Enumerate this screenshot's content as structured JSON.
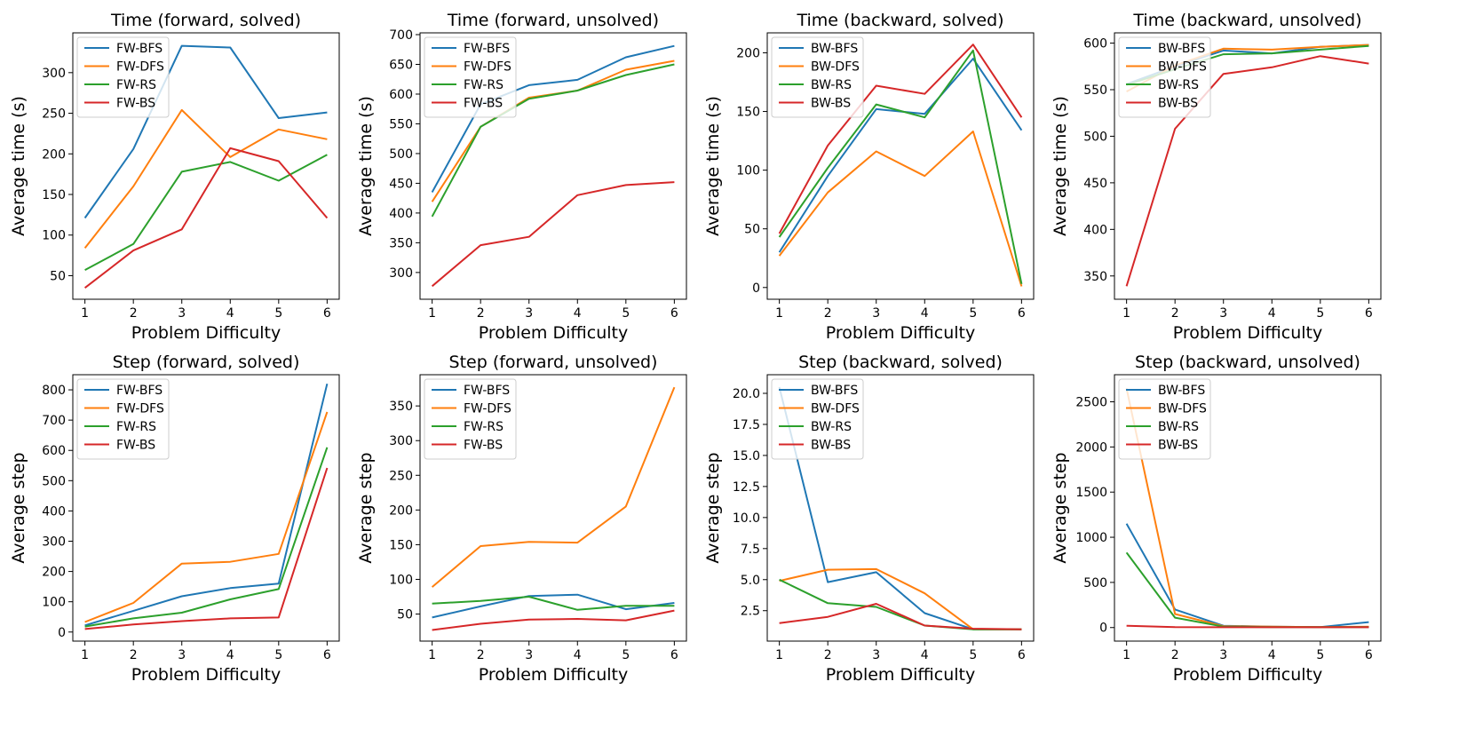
{
  "colors": {
    "FW-BFS": "#1f77b4",
    "FW-DFS": "#ff7f0e",
    "FW-RS": "#2ca02c",
    "FW-BS": "#d62728",
    "BW-BFS": "#1f77b4",
    "BW-DFS": "#ff7f0e",
    "BW-RS": "#2ca02c",
    "BW-BS": "#d62728"
  },
  "chart_data": [
    {
      "type": "line",
      "title": "Time (forward, solved)",
      "xlabel": "Problem Difficulty",
      "ylabel": "Average time (s)",
      "x": [
        1,
        2,
        3,
        4,
        5,
        6
      ],
      "xlim": [
        0.75,
        6.25
      ],
      "ylim": [
        21,
        349
      ],
      "yticks": [
        50,
        100,
        150,
        200,
        250,
        300
      ],
      "legend": "top-left",
      "series": [
        {
          "name": "FW-BFS",
          "values": [
            121,
            206,
            333,
            331,
            244,
            251
          ]
        },
        {
          "name": "FW-DFS",
          "values": [
            84,
            160,
            254,
            196,
            230,
            218
          ]
        },
        {
          "name": "FW-RS",
          "values": [
            57,
            89,
            178,
            190,
            167,
            199
          ]
        },
        {
          "name": "FW-BS",
          "values": [
            35,
            81,
            107,
            207,
            191,
            121
          ]
        }
      ]
    },
    {
      "type": "line",
      "title": "Time (forward, unsolved)",
      "xlabel": "Problem Difficulty",
      "ylabel": "Average time (s)",
      "x": [
        1,
        2,
        3,
        4,
        5,
        6
      ],
      "xlim": [
        0.75,
        6.25
      ],
      "ylim": [
        255,
        703
      ],
      "yticks": [
        300,
        350,
        400,
        450,
        500,
        550,
        600,
        650,
        700
      ],
      "legend": "top-left",
      "series": [
        {
          "name": "FW-BFS",
          "values": [
            435,
            583,
            615,
            624,
            662,
            681
          ]
        },
        {
          "name": "FW-DFS",
          "values": [
            419,
            545,
            594,
            606,
            641,
            656
          ]
        },
        {
          "name": "FW-RS",
          "values": [
            394,
            545,
            592,
            606,
            632,
            650
          ]
        },
        {
          "name": "FW-BS",
          "values": [
            277,
            346,
            360,
            430,
            447,
            452
          ]
        }
      ]
    },
    {
      "type": "line",
      "title": "Time (backward, solved)",
      "xlabel": "Problem Difficulty",
      "ylabel": "Average time (s)",
      "x": [
        1,
        2,
        3,
        4,
        5,
        6
      ],
      "xlim": [
        0.75,
        6.25
      ],
      "ylim": [
        -10,
        217
      ],
      "yticks": [
        0,
        50,
        100,
        150,
        200
      ],
      "legend": "top-left",
      "series": [
        {
          "name": "BW-BFS",
          "values": [
            30,
            95,
            152,
            148,
            195,
            134
          ]
        },
        {
          "name": "BW-DFS",
          "values": [
            27,
            81,
            116,
            95,
            133,
            1
          ]
        },
        {
          "name": "BW-RS",
          "values": [
            43,
            102,
            156,
            145,
            202,
            3
          ]
        },
        {
          "name": "BW-BS",
          "values": [
            46,
            121,
            172,
            165,
            207,
            145
          ]
        }
      ]
    },
    {
      "type": "line",
      "title": "Time (backward, unsolved)",
      "xlabel": "Problem Difficulty",
      "ylabel": "Average time (s)",
      "x": [
        1,
        2,
        3,
        4,
        5,
        6
      ],
      "xlim": [
        0.75,
        6.25
      ],
      "ylim": [
        325,
        611
      ],
      "yticks": [
        350,
        400,
        450,
        500,
        550,
        600
      ],
      "legend": "top-left",
      "series": [
        {
          "name": "BW-BFS",
          "values": [
            556,
            575,
            592,
            589,
            596,
            598
          ]
        },
        {
          "name": "BW-DFS",
          "values": [
            548,
            576,
            594,
            593,
            596,
            598
          ]
        },
        {
          "name": "BW-RS",
          "values": [
            555,
            572,
            588,
            589,
            593,
            597
          ]
        },
        {
          "name": "BW-BS",
          "values": [
            339,
            508,
            567,
            574,
            586,
            578
          ]
        }
      ]
    },
    {
      "type": "line",
      "title": "Step (forward, solved)",
      "xlabel": "Problem Difficulty",
      "ylabel": "Average step",
      "x": [
        1,
        2,
        3,
        4,
        5,
        6
      ],
      "xlim": [
        0.75,
        6.25
      ],
      "ylim": [
        -30,
        850
      ],
      "yticks": [
        0,
        100,
        200,
        300,
        400,
        500,
        600,
        700,
        800
      ],
      "legend": "top-left",
      "series": [
        {
          "name": "FW-BFS",
          "values": [
            22,
            70,
            118,
            145,
            160,
            820
          ]
        },
        {
          "name": "FW-DFS",
          "values": [
            33,
            96,
            226,
            232,
            258,
            727
          ]
        },
        {
          "name": "FW-RS",
          "values": [
            18,
            45,
            64,
            108,
            142,
            610
          ]
        },
        {
          "name": "FW-BS",
          "values": [
            10,
            25,
            36,
            45,
            48,
            542
          ]
        }
      ]
    },
    {
      "type": "line",
      "title": "Step (forward, unsolved)",
      "xlabel": "Problem Difficulty",
      "ylabel": "Average step",
      "x": [
        1,
        2,
        3,
        4,
        5,
        6
      ],
      "xlim": [
        0.75,
        6.25
      ],
      "ylim": [
        11,
        395
      ],
      "yticks": [
        50,
        100,
        150,
        200,
        250,
        300,
        350
      ],
      "legend": "top-left",
      "series": [
        {
          "name": "FW-BFS",
          "values": [
            45,
            61,
            76,
            78,
            57,
            66
          ]
        },
        {
          "name": "FW-DFS",
          "values": [
            89,
            148,
            154,
            153,
            205,
            377
          ]
        },
        {
          "name": "FW-RS",
          "values": [
            65,
            69,
            75,
            56,
            62,
            62
          ]
        },
        {
          "name": "FW-BS",
          "values": [
            27,
            36,
            42,
            43,
            41,
            55
          ]
        }
      ]
    },
    {
      "type": "line",
      "title": "Step (backward, solved)",
      "xlabel": "Problem Difficulty",
      "ylabel": "Average step",
      "x": [
        1,
        2,
        3,
        4,
        5,
        6
      ],
      "xlim": [
        0.75,
        6.25
      ],
      "ylim": [
        0.05,
        21.5
      ],
      "yticks": [
        2.5,
        5.0,
        7.5,
        10.0,
        12.5,
        15.0,
        17.5,
        20.0
      ],
      "legend": "top-left",
      "series": [
        {
          "name": "BW-BFS",
          "values": [
            20.5,
            4.8,
            5.6,
            2.3,
            1.0,
            1.0
          ]
        },
        {
          "name": "BW-DFS",
          "values": [
            4.9,
            5.8,
            5.85,
            3.9,
            1.0,
            1.0
          ]
        },
        {
          "name": "BW-RS",
          "values": [
            5.0,
            3.1,
            2.8,
            1.3,
            1.0,
            1.0
          ]
        },
        {
          "name": "BW-BS",
          "values": [
            1.5,
            2.0,
            3.05,
            1.3,
            1.05,
            1.0
          ]
        }
      ]
    },
    {
      "type": "line",
      "title": "Step (backward, unsolved)",
      "xlabel": "Problem Difficulty",
      "ylabel": "Average step",
      "x": [
        1,
        2,
        3,
        4,
        5,
        6
      ],
      "xlim": [
        0.75,
        6.25
      ],
      "ylim": [
        -150,
        2800
      ],
      "yticks": [
        0,
        500,
        1000,
        1500,
        2000,
        2500
      ],
      "legend": "top-left",
      "series": [
        {
          "name": "BW-BFS",
          "values": [
            1150,
            200,
            20,
            10,
            5,
            60
          ]
        },
        {
          "name": "BW-DFS",
          "values": [
            2650,
            150,
            15,
            10,
            5,
            10
          ]
        },
        {
          "name": "BW-RS",
          "values": [
            830,
            110,
            10,
            5,
            5,
            5
          ]
        },
        {
          "name": "BW-BS",
          "values": [
            20,
            5,
            3,
            3,
            3,
            3
          ]
        }
      ]
    }
  ]
}
